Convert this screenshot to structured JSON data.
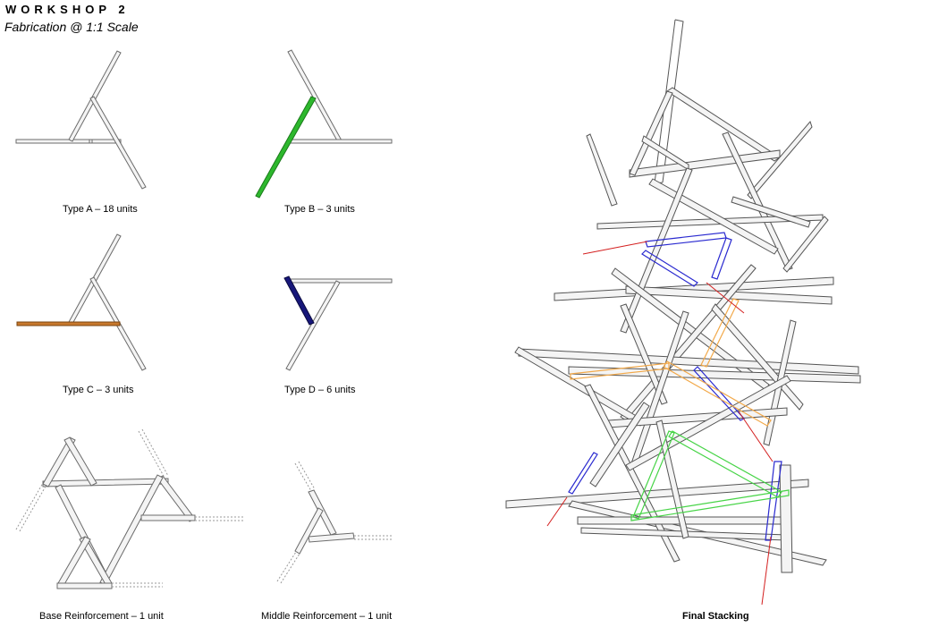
{
  "header": {
    "title": "WORKSHOP 2",
    "subtitle": "Fabrication @ 1:1 Scale"
  },
  "captions": {
    "type_a": "Type A – 18 units",
    "type_b": "Type B – 3 units",
    "type_c": "Type C – 3 units",
    "type_d": "Type D – 6 units",
    "base_reinforcement": "Base Reinforcement – 1 unit",
    "middle_reinforcement": "Middle Reinforcement – 1 unit",
    "final_stacking": "Final Stacking"
  },
  "colors": {
    "member_outline": "#6b6b6b",
    "member_fill": "#f4f4f4",
    "type_b_highlight": "#2db82d",
    "type_c_highlight": "#c8782c",
    "type_d_highlight": "#17177a",
    "orange_frame": "#f2a94a",
    "blue_frame": "#2a2ad0",
    "green_frame": "#47d447",
    "red_marker": "#d42020"
  }
}
